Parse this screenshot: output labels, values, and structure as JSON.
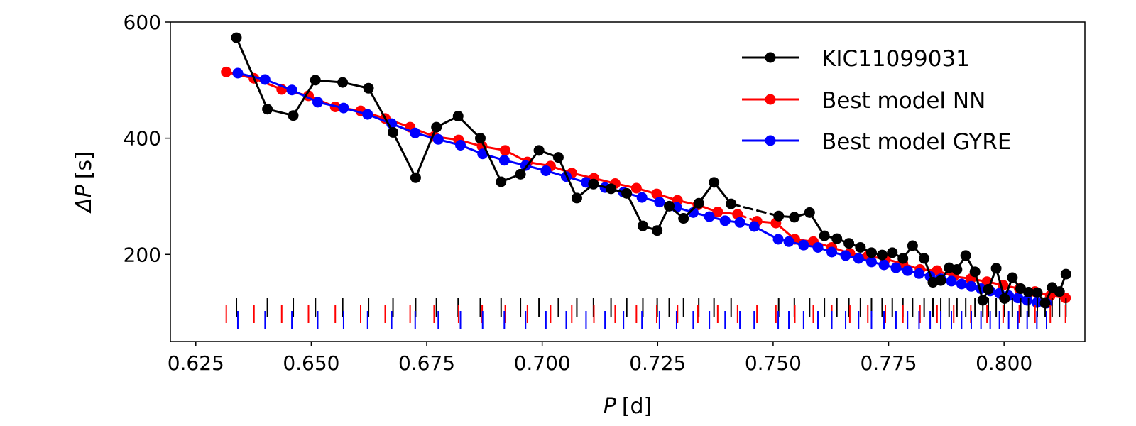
{
  "chart_data": {
    "type": "line",
    "xlabel_sym": "P",
    "xlabel_unit": "[d]",
    "ylabel_sym": "ΔP",
    "ylabel_unit": "[s]",
    "xlim": [
      0.6195,
      0.8175
    ],
    "ylim": [
      50,
      600
    ],
    "xticks": [
      0.625,
      0.65,
      0.675,
      0.7,
      0.725,
      0.75,
      0.775,
      0.8
    ],
    "xtick_labels": [
      "0.625",
      "0.650",
      "0.675",
      "0.700",
      "0.725",
      "0.750",
      "0.775",
      "0.800"
    ],
    "yticks": [
      200,
      400,
      600
    ],
    "ytick_labels": [
      "200",
      "400",
      "600"
    ],
    "legend_position": "top-right",
    "gap_after_period": 0.745,
    "series": [
      {
        "name": "KIC11099031",
        "color": "#000000",
        "points": [
          [
            0.6338,
            573
          ],
          [
            0.6405,
            450
          ],
          [
            0.6461,
            439
          ],
          [
            0.6509,
            500
          ],
          [
            0.6568,
            496
          ],
          [
            0.6624,
            486
          ],
          [
            0.6677,
            410
          ],
          [
            0.6726,
            332
          ],
          [
            0.6771,
            419
          ],
          [
            0.6818,
            438
          ],
          [
            0.6866,
            400
          ],
          [
            0.6911,
            325
          ],
          [
            0.6953,
            338
          ],
          [
            0.6993,
            379
          ],
          [
            0.7035,
            367
          ],
          [
            0.7075,
            297
          ],
          [
            0.7111,
            321
          ],
          [
            0.7149,
            313
          ],
          [
            0.7183,
            305
          ],
          [
            0.7218,
            249
          ],
          [
            0.7249,
            241
          ],
          [
            0.7275,
            283
          ],
          [
            0.7306,
            262
          ],
          [
            0.7339,
            288
          ],
          [
            0.7372,
            324
          ],
          [
            0.7409,
            287
          ],
          [
            0.7512,
            266
          ],
          [
            0.7546,
            264
          ],
          [
            0.7579,
            272
          ],
          [
            0.7611,
            232
          ],
          [
            0.7638,
            227
          ],
          [
            0.7664,
            219
          ],
          [
            0.7689,
            212
          ],
          [
            0.7713,
            203
          ],
          [
            0.7736,
            199
          ],
          [
            0.7758,
            203
          ],
          [
            0.7781,
            193
          ],
          [
            0.7802,
            215
          ],
          [
            0.7827,
            193
          ],
          [
            0.7846,
            152
          ],
          [
            0.7863,
            155
          ],
          [
            0.7881,
            177
          ],
          [
            0.7898,
            174
          ],
          [
            0.7917,
            198
          ],
          [
            0.7937,
            170
          ],
          [
            0.7954,
            121
          ],
          [
            0.7966,
            140
          ],
          [
            0.7983,
            176
          ],
          [
            0.8001,
            124
          ],
          [
            0.8018,
            160
          ],
          [
            0.8036,
            141
          ],
          [
            0.8053,
            135
          ],
          [
            0.8072,
            134
          ],
          [
            0.8089,
            116
          ],
          [
            0.8104,
            143
          ],
          [
            0.812,
            136
          ],
          [
            0.8134,
            166
          ]
        ]
      },
      {
        "name": "Best model NN",
        "color": "#ff0000",
        "points": [
          [
            0.6316,
            514
          ],
          [
            0.6376,
            503
          ],
          [
            0.6436,
            484
          ],
          [
            0.6494,
            473
          ],
          [
            0.6552,
            454
          ],
          [
            0.6607,
            447
          ],
          [
            0.666,
            434
          ],
          [
            0.6714,
            419
          ],
          [
            0.6766,
            403
          ],
          [
            0.6819,
            397
          ],
          [
            0.687,
            386
          ],
          [
            0.692,
            379
          ],
          [
            0.6968,
            359
          ],
          [
            0.7018,
            352
          ],
          [
            0.7064,
            340
          ],
          [
            0.7112,
            331
          ],
          [
            0.7158,
            322
          ],
          [
            0.7204,
            314
          ],
          [
            0.7248,
            304
          ],
          [
            0.7293,
            293
          ],
          [
            0.7337,
            285
          ],
          [
            0.738,
            273
          ],
          [
            0.7423,
            269
          ],
          [
            0.7465,
            257
          ],
          [
            0.7506,
            254
          ],
          [
            0.7547,
            226
          ],
          [
            0.7587,
            222
          ],
          [
            0.7627,
            212
          ],
          [
            0.7666,
            202
          ],
          [
            0.7705,
            197
          ],
          [
            0.7743,
            192
          ],
          [
            0.7781,
            184
          ],
          [
            0.7818,
            174
          ],
          [
            0.7855,
            172
          ],
          [
            0.7891,
            162
          ],
          [
            0.7928,
            158
          ],
          [
            0.7963,
            153
          ],
          [
            0.7998,
            147
          ],
          [
            0.8033,
            141
          ],
          [
            0.8067,
            136
          ],
          [
            0.81,
            129
          ],
          [
            0.8133,
            125
          ]
        ]
      },
      {
        "name": "Best model GYRE",
        "color": "#0000ff",
        "points": [
          [
            0.6341,
            512
          ],
          [
            0.64,
            501
          ],
          [
            0.6458,
            483
          ],
          [
            0.6514,
            462
          ],
          [
            0.657,
            452
          ],
          [
            0.6622,
            441
          ],
          [
            0.6674,
            425
          ],
          [
            0.6725,
            409
          ],
          [
            0.6775,
            398
          ],
          [
            0.6823,
            388
          ],
          [
            0.6871,
            373
          ],
          [
            0.6918,
            362
          ],
          [
            0.6964,
            353
          ],
          [
            0.7008,
            344
          ],
          [
            0.7052,
            334
          ],
          [
            0.7095,
            324
          ],
          [
            0.7136,
            315
          ],
          [
            0.7176,
            307
          ],
          [
            0.7216,
            298
          ],
          [
            0.7254,
            290
          ],
          [
            0.7291,
            281
          ],
          [
            0.7327,
            272
          ],
          [
            0.7362,
            265
          ],
          [
            0.7396,
            258
          ],
          [
            0.7428,
            255
          ],
          [
            0.7459,
            248
          ],
          [
            0.7511,
            226
          ],
          [
            0.7534,
            222
          ],
          [
            0.7566,
            216
          ],
          [
            0.7597,
            212
          ],
          [
            0.7627,
            204
          ],
          [
            0.7657,
            198
          ],
          [
            0.7685,
            193
          ],
          [
            0.7713,
            187
          ],
          [
            0.774,
            182
          ],
          [
            0.7766,
            177
          ],
          [
            0.7791,
            172
          ],
          [
            0.7816,
            167
          ],
          [
            0.784,
            162
          ],
          [
            0.7863,
            158
          ],
          [
            0.7886,
            154
          ],
          [
            0.7908,
            149
          ],
          [
            0.7929,
            145
          ],
          [
            0.795,
            141
          ],
          [
            0.797,
            137
          ],
          [
            0.799,
            133
          ],
          [
            0.801,
            129
          ],
          [
            0.803,
            125
          ],
          [
            0.805,
            121
          ],
          [
            0.8071,
            117
          ],
          [
            0.8092,
            116
          ]
        ]
      }
    ]
  }
}
